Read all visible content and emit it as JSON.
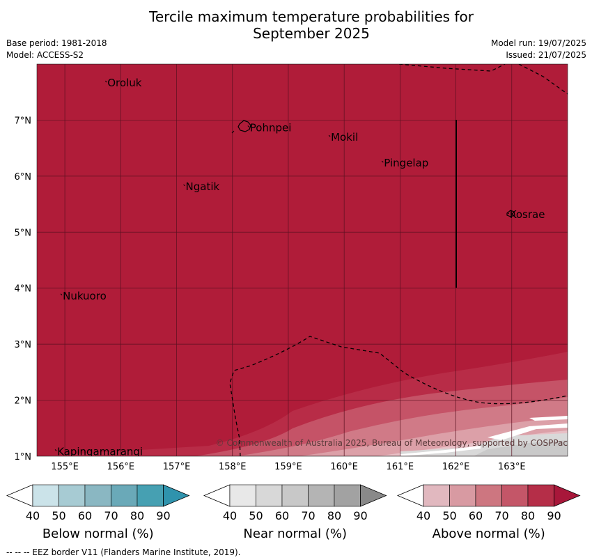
{
  "title_line1": "Tercile maximum temperature probabilities for",
  "title_line2": "September 2025",
  "meta": {
    "base_period": "Base period: 1981-2018",
    "model": "Model: ACCESS-S2",
    "model_run": "Model run: 19/07/2025",
    "issued": "Issued: 21/07/2025"
  },
  "colors": {
    "above_90": "#b01c39",
    "above_80": "#b82c47",
    "above_70": "#c55367",
    "above_60": "#d07a87",
    "above_50": "#dca0a8",
    "above_40": "#e8c0c6",
    "near_70": "#c9c9c9",
    "near_60": "#d9d9d9",
    "grid": "#5a1020"
  },
  "map": {
    "lon_ticks": [
      "155°E",
      "156°E",
      "157°E",
      "158°E",
      "159°E",
      "160°E",
      "161°E",
      "162°E",
      "163°E"
    ],
    "lat_ticks": [
      "1°N",
      "2°N",
      "3°N",
      "4°N",
      "5°N",
      "6°N",
      "7°N"
    ],
    "places": [
      {
        "name": "Oroluk",
        "lon": 155.75,
        "lat": 7.65
      },
      {
        "name": "Pohnpei",
        "lon": 158.3,
        "lat": 6.85
      },
      {
        "name": "Mokil",
        "lon": 159.75,
        "lat": 6.68
      },
      {
        "name": "Pingelap",
        "lon": 160.7,
        "lat": 6.22
      },
      {
        "name": "Ngatik",
        "lon": 157.15,
        "lat": 5.8
      },
      {
        "name": "Kosrae",
        "lon": 162.95,
        "lat": 5.3
      },
      {
        "name": "Nukuoro",
        "lon": 154.95,
        "lat": 3.85
      },
      {
        "name": "Kapingamarangi",
        "lon": 154.85,
        "lat": 1.07
      }
    ],
    "copyright": "© Commonwealth of Australia 2025, Bureau of Meteorology, supported by COSPPac"
  },
  "colorbars": [
    {
      "title": "Below normal (%)",
      "labels": [
        "40",
        "50",
        "60",
        "70",
        "80",
        "90"
      ],
      "colors": [
        "#ffffff",
        "#cbe3e9",
        "#a7cbd3",
        "#8ab7c2",
        "#6aa9b8",
        "#46a0b2",
        "#2f93ad"
      ]
    },
    {
      "title": "Near normal (%)",
      "labels": [
        "40",
        "50",
        "60",
        "70",
        "80",
        "90"
      ],
      "colors": [
        "#ffffff",
        "#e8e8e8",
        "#d8d8d8",
        "#c8c8c8",
        "#b4b4b4",
        "#a2a2a2",
        "#898989"
      ]
    },
    {
      "title": "Above normal (%)",
      "labels": [
        "40",
        "50",
        "60",
        "70",
        "80",
        "90"
      ],
      "colors": [
        "#ffffff",
        "#e1b8bf",
        "#d89aa2",
        "#cd7680",
        "#c45668",
        "#b52e48",
        "#a8173a"
      ]
    }
  ],
  "footnote": "--  --  -- EEZ border V11 (Flanders Marine Institute, 2019)."
}
